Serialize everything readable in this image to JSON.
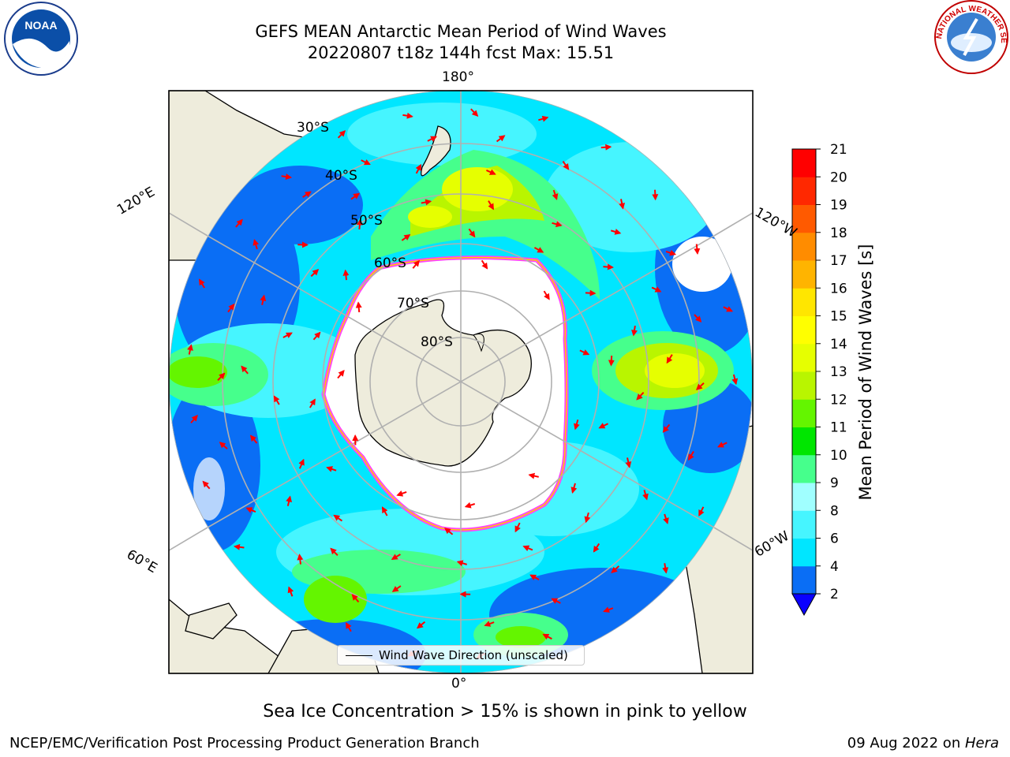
{
  "title": {
    "line1": "GEFS MEAN Antarctic Mean Period of Wind Waves",
    "line2": "20220807 t18z 144h fcst   Max: 15.51"
  },
  "map": {
    "projection": "south-polar-stereographic",
    "longitude_labels": [
      "180°",
      "120°E",
      "120°W",
      "60°E",
      "60°W",
      "0°"
    ],
    "latitude_labels": [
      "30°S",
      "40°S",
      "50°S",
      "60°S",
      "70°S",
      "80°S"
    ],
    "legend_label": "Wind Wave Direction (unscaled)",
    "arrow_color": "#ff0000",
    "land_color": "#eeecdc",
    "ice_edge_colors": [
      "#ff44ff",
      "#ffcc00"
    ]
  },
  "colorbar": {
    "label": "Mean Period of Wind Waves [s]",
    "ticks": [
      "2",
      "4",
      "6",
      "8",
      "9",
      "10",
      "11",
      "12",
      "13",
      "14",
      "15",
      "16",
      "17",
      "18",
      "19",
      "20",
      "21"
    ],
    "colors": [
      "#0a6ef5",
      "#00e6ff",
      "#46f5ff",
      "#a0ffff",
      "#46ff8c",
      "#00e600",
      "#64f500",
      "#b9f500",
      "#e6ff00",
      "#ffff00",
      "#ffe600",
      "#ffb400",
      "#ff8c00",
      "#ff5a00",
      "#ff2800",
      "#ff0000"
    ],
    "under_color": "#0a00ff"
  },
  "footer": {
    "note": "Sea Ice Concentration > 15% is shown in pink to yellow",
    "left": "NCEP/EMC/Verification Post Processing Product Generation Branch",
    "date": "09 Aug 2022 on ",
    "machine": "Hera"
  }
}
